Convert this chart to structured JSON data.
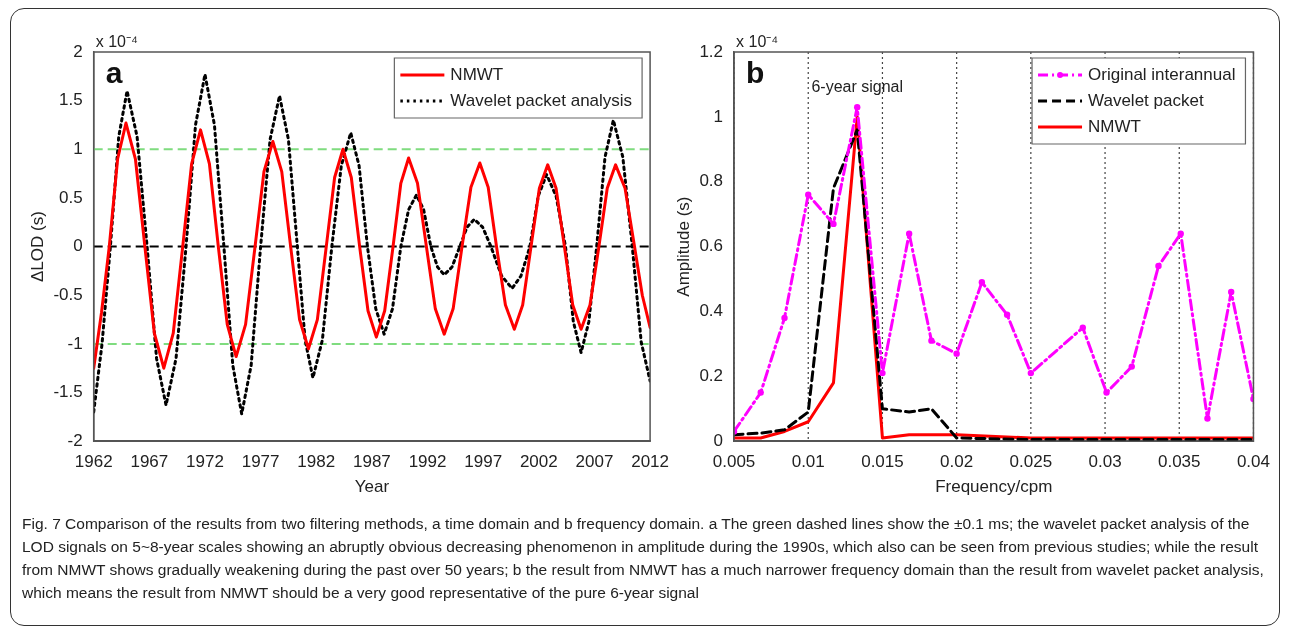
{
  "chart_data": [
    {
      "type": "line",
      "xlabel": "Year",
      "ylabel": "ΔLOD (s)",
      "xlim": [
        1962,
        2012
      ],
      "xticks": [
        1962,
        1967,
        1972,
        1977,
        1982,
        1987,
        1992,
        1997,
        2002,
        2007,
        2012
      ],
      "ylim": [
        -2,
        2
      ],
      "yticks": [
        -2,
        -1.5,
        -1,
        -0.5,
        0,
        0.5,
        1,
        1.5,
        2
      ],
      "legend": "top right",
      "series": [
        {
          "name": "NMWT",
          "color": "#ff0000",
          "line_style": "solid",
          "x": [
            1962,
            1962.7,
            1963.4,
            1964.15,
            1964.9,
            1965.75,
            1966.6,
            1967.45,
            1968.3,
            1969.15,
            1970.0,
            1970.8,
            1971.6,
            1972.4,
            1973.2,
            1974.0,
            1974.8,
            1975.65,
            1976.5,
            1977.3,
            1978.1,
            1978.9,
            1979.7,
            1980.5,
            1981.3,
            1982.1,
            1982.9,
            1983.65,
            1984.4,
            1985.15,
            1985.9,
            1986.65,
            1987.4,
            1988.15,
            1988.9,
            1989.6,
            1990.3,
            1991.1,
            1991.9,
            1992.7,
            1993.5,
            1994.3,
            1995.1,
            1995.9,
            1996.7,
            1997.45,
            1998.2,
            1999.0,
            1999.8,
            2000.55,
            2001.3,
            2002.05,
            2002.8,
            2003.55,
            2004.3,
            2005.05,
            2005.8,
            2006.6,
            2007.4,
            2008.15,
            2008.9,
            2009.75,
            2010.6,
            2011.3,
            2012
          ],
          "values": [
            -1.25,
            -0.68,
            0,
            0.9,
            1.27,
            0.9,
            0,
            -0.89,
            -1.25,
            -0.89,
            0,
            0.85,
            1.2,
            0.85,
            0,
            -0.8,
            -1.13,
            -0.8,
            0,
            0.77,
            1.08,
            0.77,
            0,
            -0.75,
            -1.05,
            -0.75,
            0,
            0.71,
            1.0,
            0.71,
            0,
            -0.66,
            -0.93,
            -0.66,
            0,
            0.65,
            0.91,
            0.65,
            0,
            -0.64,
            -0.9,
            -0.64,
            0,
            0.61,
            0.86,
            0.61,
            0,
            -0.6,
            -0.85,
            -0.6,
            0,
            0.6,
            0.84,
            0.6,
            0,
            -0.6,
            -0.85,
            -0.6,
            0,
            0.6,
            0.84,
            0.6,
            0,
            -0.5,
            -0.83
          ]
        },
        {
          "name": "Wavelet packet analysis",
          "color": "#000000",
          "line_style": "dotted",
          "x": [
            1962,
            1962.75,
            1963.5,
            1964.25,
            1965.0,
            1965.9,
            1966.8,
            1967.65,
            1968.5,
            1969.4,
            1970.3,
            1971.15,
            1972.0,
            1972.85,
            1973.7,
            1974.5,
            1975.3,
            1976.15,
            1977.0,
            1977.85,
            1978.7,
            1979.5,
            1980.3,
            1981.0,
            1981.7,
            1982.55,
            1983.4,
            1984.25,
            1985.1,
            1985.85,
            1986.6,
            1987.35,
            1988.1,
            1988.85,
            1989.6,
            1990.3,
            1991.0,
            1991.65,
            1992.3,
            1992.9,
            1993.5,
            1994.2,
            1994.9,
            1995.55,
            1996.2,
            1996.95,
            1997.7,
            1998.65,
            1999.6,
            2000.4,
            2001.2,
            2001.95,
            2002.7,
            2003.55,
            2004.4,
            2005.1,
            2005.8,
            2006.5,
            2007.2,
            2007.95,
            2008.7,
            2009.55,
            2010.4,
            2011.2,
            2012
          ],
          "values": [
            -1.7,
            -1.0,
            0,
            1.13,
            1.6,
            1.13,
            0,
            -1.15,
            -1.63,
            -1.15,
            0,
            1.25,
            1.77,
            1.25,
            0,
            -1.22,
            -1.72,
            -1.22,
            0,
            1.1,
            1.55,
            1.1,
            0,
            -0.96,
            -1.35,
            -0.96,
            0,
            0.83,
            1.17,
            0.83,
            0,
            -0.64,
            -0.9,
            -0.64,
            0,
            0.38,
            0.53,
            0.38,
            0,
            -0.21,
            -0.29,
            -0.21,
            0,
            0.2,
            0.28,
            0.2,
            0,
            -0.3,
            -0.43,
            -0.3,
            0,
            0.52,
            0.74,
            0.52,
            0,
            -0.77,
            -1.09,
            -0.77,
            0,
            0.92,
            1.3,
            0.92,
            0,
            -0.98,
            -1.38
          ]
        }
      ],
      "ref_lines": [
        {
          "axis": "y",
          "value": 1,
          "color": "#7fdc7f",
          "line_style": "dashed"
        },
        {
          "axis": "y",
          "value": -1,
          "color": "#7fdc7f",
          "line_style": "dashed"
        },
        {
          "axis": "y",
          "value": 0,
          "color": "#000000",
          "line_style": "dashed"
        }
      ],
      "annotations": [
        "a",
        "x 10⁻⁴",
        "Fig. 7 Comparison of the results from two filtering methods, a time domain and b frequency domain. a The green dashed lines show the ±0.1 ms; the wavelet packet analysis of the LOD signals on 5~8-year scales showing an abruptly obvious decreasing phenomenon in amplitude during the 1990s, which also can be seen from previous studies; while the result from NMWT shows gradually weakening during the past over 50 years; b the result from NMWT has a much narrower frequency domain than the result from wavelet packet analysis, which means the result from NMWT should be a very good representative of the pure 6-year signal"
      ]
    },
    {
      "type": "line",
      "xlabel": "Frequency/cpm",
      "ylabel": "Amplitude (s)",
      "xlim": [
        0.005,
        0.04
      ],
      "xticks": [
        0.005,
        0.01,
        0.015,
        0.02,
        0.025,
        0.03,
        0.035,
        0.04
      ],
      "ylim": [
        0,
        1.2
      ],
      "yticks": [
        0,
        0.2,
        0.4,
        0.6,
        0.8,
        1,
        1.2
      ],
      "grid": "x",
      "legend": "top right",
      "series": [
        {
          "name": "Original interannual",
          "color": "#ff00ff",
          "line_style": "dashdot",
          "marker": "circle",
          "x": [
            0.005,
            0.0068,
            0.0084,
            0.01,
            0.0117,
            0.0133,
            0.015,
            0.0168,
            0.0183,
            0.02,
            0.0217,
            0.0234,
            0.025,
            0.0285,
            0.0301,
            0.0318,
            0.0336,
            0.0351,
            0.0369,
            0.0385,
            0.04
          ],
          "values": [
            0.03,
            0.15,
            0.38,
            0.76,
            0.67,
            1.03,
            0.21,
            0.64,
            0.31,
            0.27,
            0.49,
            0.39,
            0.21,
            0.35,
            0.15,
            0.23,
            0.54,
            0.64,
            0.07,
            0.46,
            0.13
          ]
        },
        {
          "name": "Wavelet packet",
          "color": "#000000",
          "line_style": "dashed",
          "x": [
            0.005,
            0.0068,
            0.0084,
            0.01,
            0.0117,
            0.0133,
            0.015,
            0.0168,
            0.0183,
            0.02,
            0.025,
            0.03,
            0.035,
            0.04
          ],
          "values": [
            0.02,
            0.025,
            0.035,
            0.09,
            0.78,
            0.96,
            0.1,
            0.09,
            0.1,
            0.01,
            0.005,
            0.005,
            0.005,
            0.005
          ]
        },
        {
          "name": "NMWT",
          "color": "#ff0000",
          "line_style": "solid",
          "x": [
            0.005,
            0.0068,
            0.0084,
            0.01,
            0.0117,
            0.0133,
            0.015,
            0.0168,
            0.02,
            0.025,
            0.03,
            0.035,
            0.04
          ],
          "values": [
            0.01,
            0.01,
            0.03,
            0.06,
            0.18,
            1.0,
            0.01,
            0.02,
            0.02,
            0.01,
            0.01,
            0.01,
            0.01
          ]
        }
      ],
      "annotations": [
        "b",
        "x 10⁻⁴",
        {
          "text": "6-year signal",
          "x": 0.0133,
          "y": 1.03
        }
      ]
    }
  ]
}
